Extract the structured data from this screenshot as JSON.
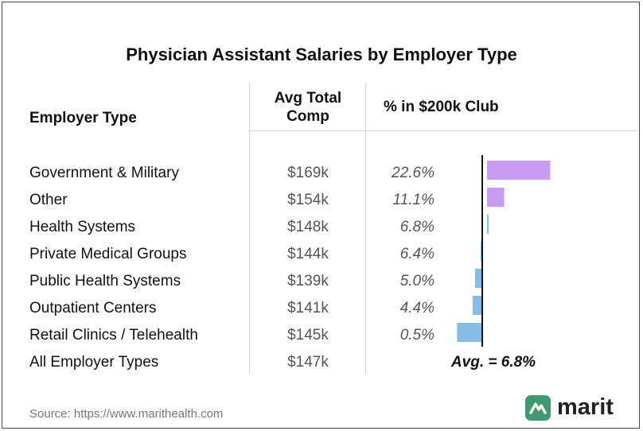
{
  "title": "Physician Assistant Salaries by Employer Type",
  "headers": {
    "employer_type": "Employer Type",
    "avg_comp_line1": "Avg Total",
    "avg_comp_line2": "Comp",
    "club": "% in $200k Club"
  },
  "rows": [
    {
      "label": "Government & Military",
      "comp": "$169k",
      "pct_text": "22.6%"
    },
    {
      "label": "Other",
      "comp": "$154k",
      "pct_text": "11.1%"
    },
    {
      "label": "Health Systems",
      "comp": "$148k",
      "pct_text": "6.8%"
    },
    {
      "label": "Private Medical Groups",
      "comp": "$144k",
      "pct_text": "6.4%"
    },
    {
      "label": "Public Health Systems",
      "comp": "$139k",
      "pct_text": "5.0%"
    },
    {
      "label": "Outpatient Centers",
      "comp": "$141k",
      "pct_text": "4.4%"
    },
    {
      "label": "Retail Clinics / Telehealth",
      "comp": "$145k",
      "pct_text": "0.5%"
    },
    {
      "label": "All Employer Types",
      "comp": "$147k",
      "pct_text": ""
    }
  ],
  "avg_label": "Avg. = 6.8%",
  "source": "Source: https://www.marithealth.com",
  "logo_text": "marit",
  "colors": {
    "above_avg": "#c99cf2",
    "below_avg": "#86bde6",
    "avg_line": "#111111",
    "logo_green": "#3e9a70"
  },
  "chart_data": {
    "type": "bar",
    "orientation": "horizontal",
    "title": "Physician Assistant Salaries by Employer Type",
    "categories": [
      "Government & Military",
      "Other",
      "Health Systems",
      "Private Medical Groups",
      "Public Health Systems",
      "Outpatient Centers",
      "Retail Clinics / Telehealth"
    ],
    "values": [
      22.6,
      11.1,
      6.8,
      6.4,
      5.0,
      4.4,
      0.5
    ],
    "baseline": 6.8,
    "baseline_label": "Avg. = 6.8%",
    "unit": "%",
    "xlabel": "% in $200k Club",
    "grid": false
  }
}
